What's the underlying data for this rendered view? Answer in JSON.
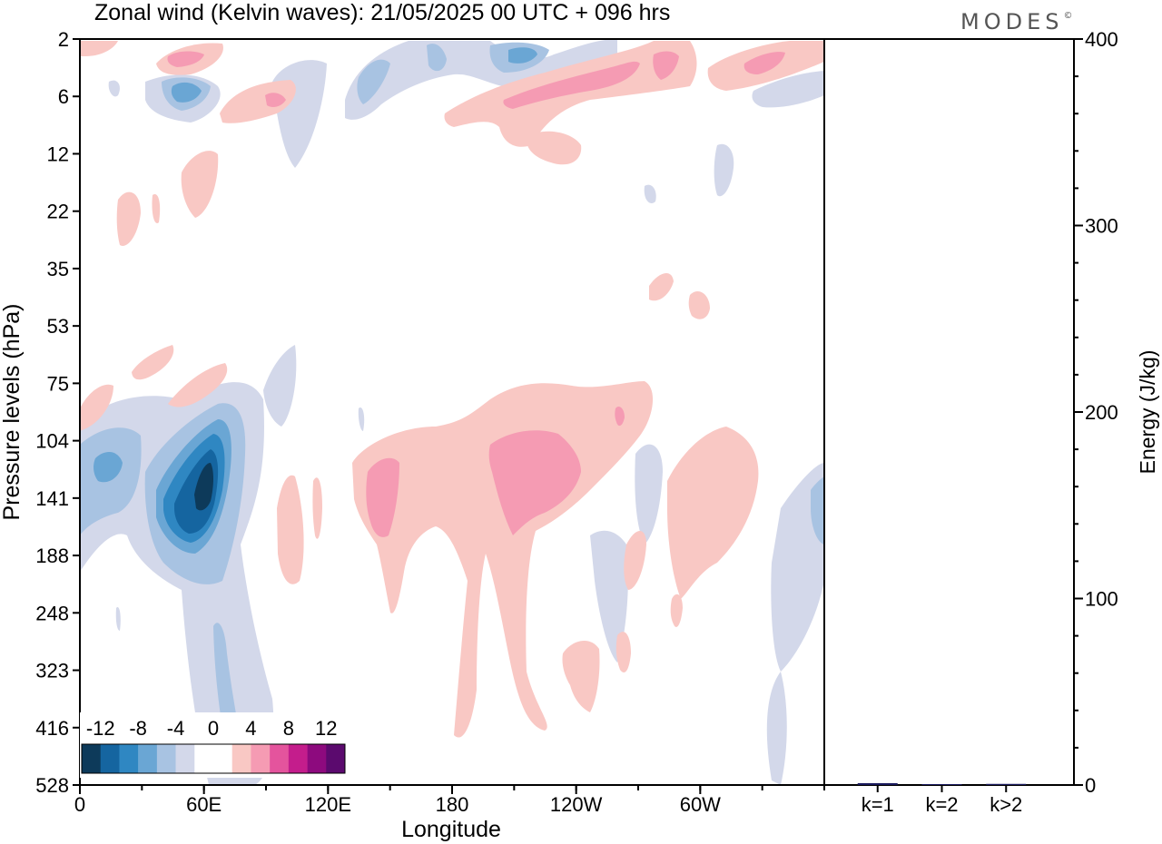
{
  "chart_data": [
    {
      "type": "heatmap",
      "title": "Zonal wind (Kelvin waves):  21/05/2025  00 UTC  + 096 hrs",
      "xlabel": "Longitude",
      "ylabel": "Pressure levels (hPa)",
      "x_ticks": [
        "0",
        "60E",
        "120E",
        "180",
        "120W",
        "60W"
      ],
      "x_tick_degrees": [
        0,
        60,
        120,
        180,
        240,
        300
      ],
      "xlim": [
        0,
        360
      ],
      "y_ticks": [
        "2",
        "6",
        "12",
        "22",
        "35",
        "53",
        "75",
        "104",
        "141",
        "188",
        "248",
        "323",
        "416",
        "528"
      ],
      "y_axis": "pressure levels, top 2 hPa to bottom 528 hPa",
      "colorbar": {
        "labels": [
          "-12",
          "-8",
          "-4",
          "0",
          "4",
          "8",
          "12"
        ],
        "levels": [
          -14,
          -12,
          -10,
          -8,
          -6,
          -4,
          -2,
          0,
          2,
          4,
          6,
          8,
          10,
          12,
          14
        ],
        "colors": [
          "#0d3a5a",
          "#1565a0",
          "#2f87c2",
          "#6aa6d4",
          "#a8c3e2",
          "#d3d8ea",
          "#ffffff",
          "#ffffff",
          "#f9c8c4",
          "#f59bb3",
          "#e4549d",
          "#c41d8c",
          "#8d0a7e",
          "#5b0a6e"
        ]
      },
      "features": [
        {
          "name": "negative-core",
          "sign": "negative",
          "approx_lon": 60,
          "approx_level_hPa": 141,
          "max_magnitude": 14
        },
        {
          "name": "positive-band-dateline",
          "sign": "positive",
          "approx_lon": 150,
          "approx_level_hPa": 141,
          "max_magnitude": 6
        },
        {
          "name": "positive-band-140w",
          "sign": "positive",
          "approx_lon": 220,
          "approx_level_hPa": 141,
          "max_magnitude": 6
        },
        {
          "name": "upper-positive-tilted-band",
          "sign": "positive",
          "approx_lon": 250,
          "approx_level_hPa": 6,
          "max_magnitude": 6
        }
      ]
    },
    {
      "type": "bar",
      "categories": [
        "k=1",
        "k=2",
        "k>2"
      ],
      "values": [
        1.0,
        0.3,
        0.6
      ],
      "ylabel": "Energy (J/kg)",
      "ylim": [
        0,
        400
      ],
      "y_ticks": [
        0,
        100,
        200,
        300,
        400
      ],
      "bar_color": "#1a1a5e"
    }
  ],
  "brand": "MODES",
  "brand_mark": "©"
}
